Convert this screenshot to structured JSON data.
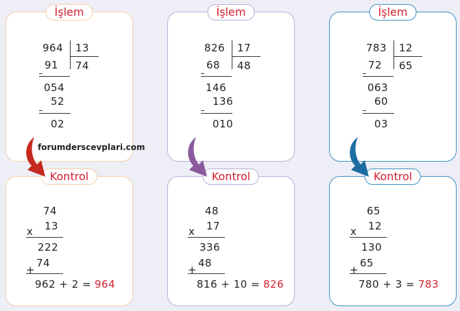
{
  "watermark": "forumderscevplari.com",
  "columns": [
    {
      "color": "#f5cfa8",
      "arrow_color": "#c62a1e",
      "islem_label": "İşlem",
      "kontrol_label": "Kontrol",
      "division": {
        "dividend": "964",
        "divisor": "13",
        "quotient": "74",
        "step1": "91",
        "rem1": "054",
        "step2": "52",
        "remainder": "02"
      },
      "check": {
        "a": "74",
        "b": "13",
        "op_mul": "x",
        "partial1": "222",
        "op_add": "+",
        "partial2": "74",
        "sum": "962 + 2 =",
        "result": "964"
      }
    },
    {
      "color": "#b9aed6",
      "arrow_color": "#8a5a9e",
      "islem_label": "İşlem",
      "kontrol_label": "Kontrol",
      "division": {
        "dividend": "826",
        "divisor": "17",
        "quotient": "48",
        "step1": "68",
        "rem1": "146",
        "step2": "136",
        "remainder": "010"
      },
      "check": {
        "a": "48",
        "b": "17",
        "op_mul": "x",
        "partial1": "336",
        "op_add": "+",
        "partial2": "48",
        "sum": "816 + 10 =",
        "result": "826"
      }
    },
    {
      "color": "#3f8fc4",
      "arrow_color": "#1f6ea3",
      "islem_label": "İşlem",
      "kontrol_label": "Kontrol",
      "division": {
        "dividend": "783",
        "divisor": "12",
        "quotient": "65",
        "step1": "72",
        "rem1": "063",
        "step2": "60",
        "remainder": "03"
      },
      "check": {
        "a": "65",
        "b": "12",
        "op_mul": "x",
        "partial1": "130",
        "op_add": "+",
        "partial2": "65",
        "sum": "780 + 3 =",
        "result": "783"
      }
    }
  ]
}
